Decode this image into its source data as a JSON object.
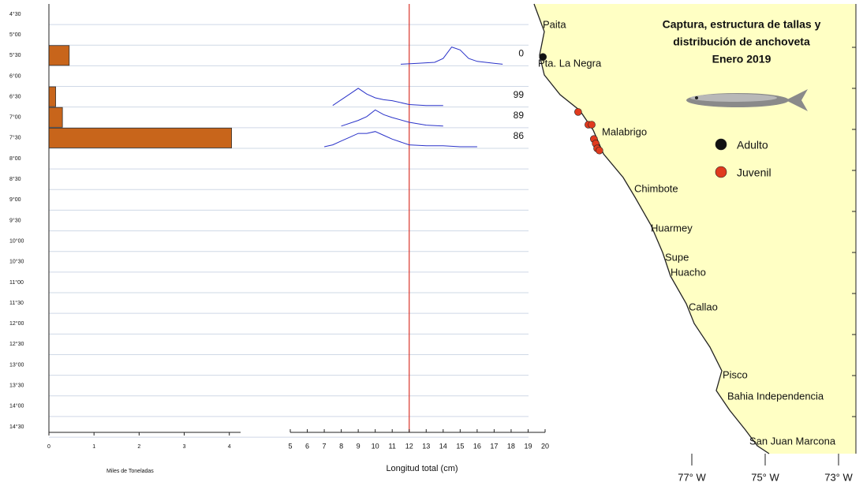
{
  "chart_data": [
    {
      "type": "hbar",
      "categories": [
        "4°30",
        "5°00",
        "5°30",
        "6°00",
        "6°30",
        "7°00",
        "7°30",
        "8°00",
        "8°30",
        "9°00",
        "9°30",
        "10°00",
        "10°30",
        "11°00",
        "11°30",
        "12°00",
        "12°30",
        "13°00",
        "13°30",
        "14°00",
        "14°30"
      ],
      "values": [
        0,
        0,
        0.45,
        0,
        0.15,
        0.3,
        4.05,
        0,
        0,
        0,
        0,
        0,
        0,
        0,
        0,
        0,
        0,
        0,
        0,
        0,
        0
      ],
      "color": "#c8651b",
      "xlim": [
        0,
        4.25
      ],
      "xticks": [
        0,
        1,
        2,
        3,
        4
      ],
      "xlabel": "Miles de Toneladas",
      "grid": true
    },
    {
      "type": "ridge",
      "xlim": [
        5,
        20
      ],
      "xticks": [
        5,
        6,
        7,
        8,
        9,
        10,
        11,
        12,
        13,
        14,
        15,
        16,
        17,
        18,
        19,
        20
      ],
      "ylim": [
        0,
        1
      ],
      "xlabel": "Longitud total (cm)",
      "reference_x": 12,
      "reference_color": "#d9342b",
      "color": "#2a33c9",
      "series": [
        {
          "latitude": "5°30",
          "label": "0",
          "x": [
            11.5,
            12.5,
            13.5,
            14,
            14.5,
            15,
            15.5,
            16,
            17,
            17.5
          ],
          "values": [
            0,
            0.05,
            0.1,
            0.3,
            0.9,
            0.75,
            0.3,
            0.15,
            0.05,
            0
          ]
        },
        {
          "latitude": "6°30",
          "label": "99",
          "x": [
            7.5,
            8,
            8.5,
            9,
            9.5,
            10,
            10.5,
            11,
            12,
            13,
            14
          ],
          "values": [
            0,
            0.3,
            0.6,
            0.9,
            0.6,
            0.4,
            0.3,
            0.25,
            0.05,
            0,
            0
          ]
        },
        {
          "latitude": "7°00",
          "label": "89",
          "x": [
            8,
            9,
            9.5,
            10,
            10.5,
            11,
            12,
            13,
            14
          ],
          "values": [
            0,
            0.3,
            0.5,
            0.85,
            0.6,
            0.45,
            0.2,
            0.05,
            0
          ]
        },
        {
          "latitude": "7°30",
          "label": "86",
          "x": [
            7,
            7.5,
            8,
            8.5,
            9,
            9.5,
            10,
            10.5,
            11,
            12,
            13,
            14,
            15,
            16
          ],
          "values": [
            0,
            0.1,
            0.3,
            0.5,
            0.7,
            0.7,
            0.8,
            0.6,
            0.4,
            0.1,
            0.05,
            0.05,
            0,
            0
          ]
        }
      ]
    }
  ],
  "map": {
    "title": [
      "Captura, estructura de tallas y",
      "distribución de anchoveta",
      "Enero 2019"
    ],
    "places": [
      "Paita",
      "Pta. La Negra",
      "Malabrigo",
      "Chimbote",
      "Huarmey",
      "Supe",
      "Huacho",
      "Callao",
      "Pisco",
      "Bahia Independencia",
      "San Juan Marcona"
    ],
    "lonticks": [
      {
        "value": -77,
        "label": "77° W"
      },
      {
        "value": -75,
        "label": "75° W"
      },
      {
        "value": -73,
        "label": "73° W"
      }
    ],
    "legend": [
      {
        "name": "Adulto",
        "color": "#111111"
      },
      {
        "name": "Juvenil",
        "color": "#e03a1e"
      }
    ],
    "adult_points": {
      "lon": [
        -81.06
      ],
      "lat": [
        5.6
      ]
    },
    "juvenile_points": {
      "lon": [
        -80.1,
        -79.82,
        -79.73,
        -79.67,
        -79.62,
        -79.58,
        -79.52
      ],
      "lat": [
        6.94,
        7.25,
        7.25,
        7.6,
        7.71,
        7.83,
        7.88
      ]
    }
  }
}
